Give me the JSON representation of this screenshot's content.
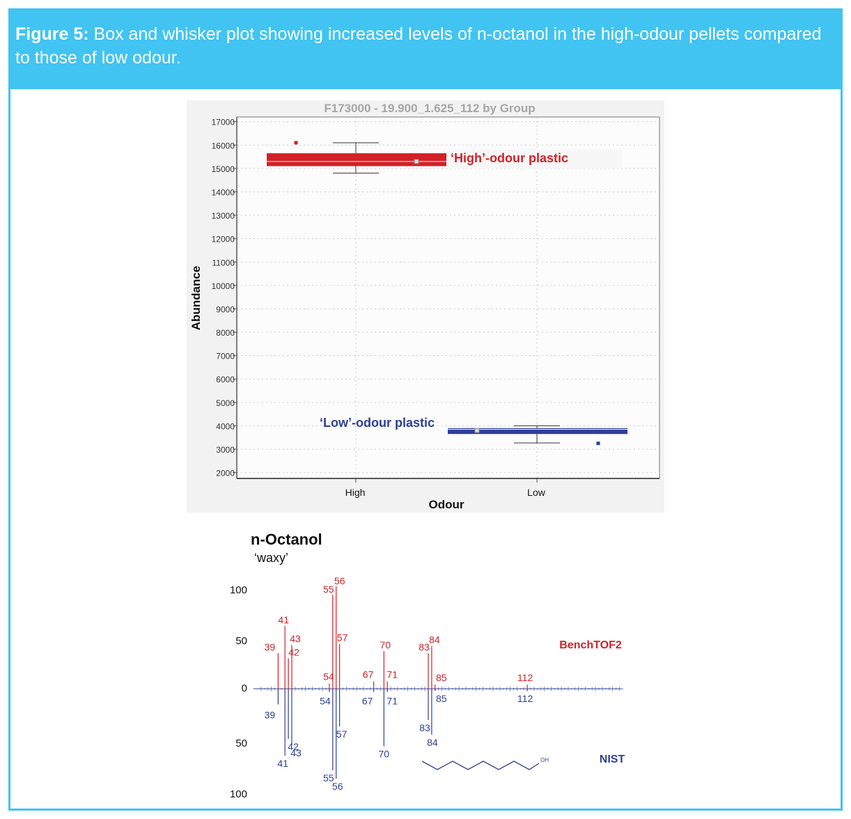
{
  "caption": {
    "label": "Figure 5:",
    "text": " Box and whisker plot showing increased levels of n-octanol in the high-odour pellets compared to those of low odour."
  },
  "chart_data": [
    {
      "type": "box",
      "title": "F173000 - 19.900_1.625_112 by Group",
      "xlabel": "Odour",
      "ylabel": "Abundance",
      "ylim": [
        1750,
        17200
      ],
      "yticks": [
        2000,
        3000,
        4000,
        5000,
        6000,
        7000,
        8000,
        9000,
        10000,
        11000,
        12000,
        13000,
        14000,
        15000,
        16000,
        17000
      ],
      "categories": [
        "High",
        "Low"
      ],
      "grid": true,
      "boxes": [
        {
          "group": "High",
          "label": "‘High’-odour plastic",
          "color": "#d42027",
          "whisker_low": 14800,
          "q1": 15100,
          "median": 15300,
          "q3": 15650,
          "whisker_high": 16100,
          "mean": 15300,
          "outliers": [
            16100
          ]
        },
        {
          "group": "Low",
          "label": "‘Low’-odour plastic",
          "color": "#2e3f96",
          "whisker_low": 3270,
          "q1": 3650,
          "median": 3850,
          "q3": 3900,
          "whisker_high": 4000,
          "mean": 3800,
          "outliers": [
            3250
          ]
        }
      ]
    },
    {
      "type": "mirror-spectrum",
      "title": "n-Octanol",
      "subtitle": "‘waxy’",
      "yticks_top": [
        "100",
        "50",
        "0"
      ],
      "yticks_bottom": [
        "50",
        "100"
      ],
      "xlim": [
        33,
        140
      ],
      "series": [
        {
          "name": "BenchTOF2",
          "color": "#d42027",
          "direction": "up",
          "peaks": [
            {
              "mz": 39,
              "intensity": 34,
              "label": "39"
            },
            {
              "mz": 41,
              "intensity": 60,
              "label": "41"
            },
            {
              "mz": 42,
              "intensity": 29,
              "label": "42"
            },
            {
              "mz": 43,
              "intensity": 42,
              "label": "43"
            },
            {
              "mz": 54,
              "intensity": 5,
              "label": "54"
            },
            {
              "mz": 55,
              "intensity": 90,
              "label": "55"
            },
            {
              "mz": 56,
              "intensity": 98,
              "label": "56"
            },
            {
              "mz": 57,
              "intensity": 43,
              "label": "57"
            },
            {
              "mz": 67,
              "intensity": 7,
              "label": "67"
            },
            {
              "mz": 70,
              "intensity": 36,
              "label": "70"
            },
            {
              "mz": 71,
              "intensity": 7,
              "label": "71"
            },
            {
              "mz": 83,
              "intensity": 34,
              "label": "83"
            },
            {
              "mz": 84,
              "intensity": 41,
              "label": "84"
            },
            {
              "mz": 85,
              "intensity": 4,
              "label": "85"
            },
            {
              "mz": 112,
              "intensity": 4,
              "label": "112"
            }
          ]
        },
        {
          "name": "NIST",
          "color": "#2e3f96",
          "direction": "down",
          "peaks": [
            {
              "mz": 39,
              "intensity": 15,
              "label": "39"
            },
            {
              "mz": 41,
              "intensity": 64,
              "label": "41"
            },
            {
              "mz": 42,
              "intensity": 48,
              "label": "42"
            },
            {
              "mz": 43,
              "intensity": 54,
              "label": "43"
            },
            {
              "mz": 54,
              "intensity": 3,
              "label": "54"
            },
            {
              "mz": 55,
              "intensity": 78,
              "label": "55"
            },
            {
              "mz": 56,
              "intensity": 86,
              "label": "56"
            },
            {
              "mz": 57,
              "intensity": 36,
              "label": "57"
            },
            {
              "mz": 67,
              "intensity": 3,
              "label": "67"
            },
            {
              "mz": 70,
              "intensity": 55,
              "label": "70"
            },
            {
              "mz": 71,
              "intensity": 3,
              "label": "71"
            },
            {
              "mz": 83,
              "intensity": 30,
              "label": "83"
            },
            {
              "mz": 84,
              "intensity": 44,
              "label": "84"
            },
            {
              "mz": 85,
              "intensity": 2,
              "label": "85"
            },
            {
              "mz": 112,
              "intensity": 2,
              "label": "112"
            }
          ]
        }
      ],
      "structure_label": "OH"
    }
  ]
}
